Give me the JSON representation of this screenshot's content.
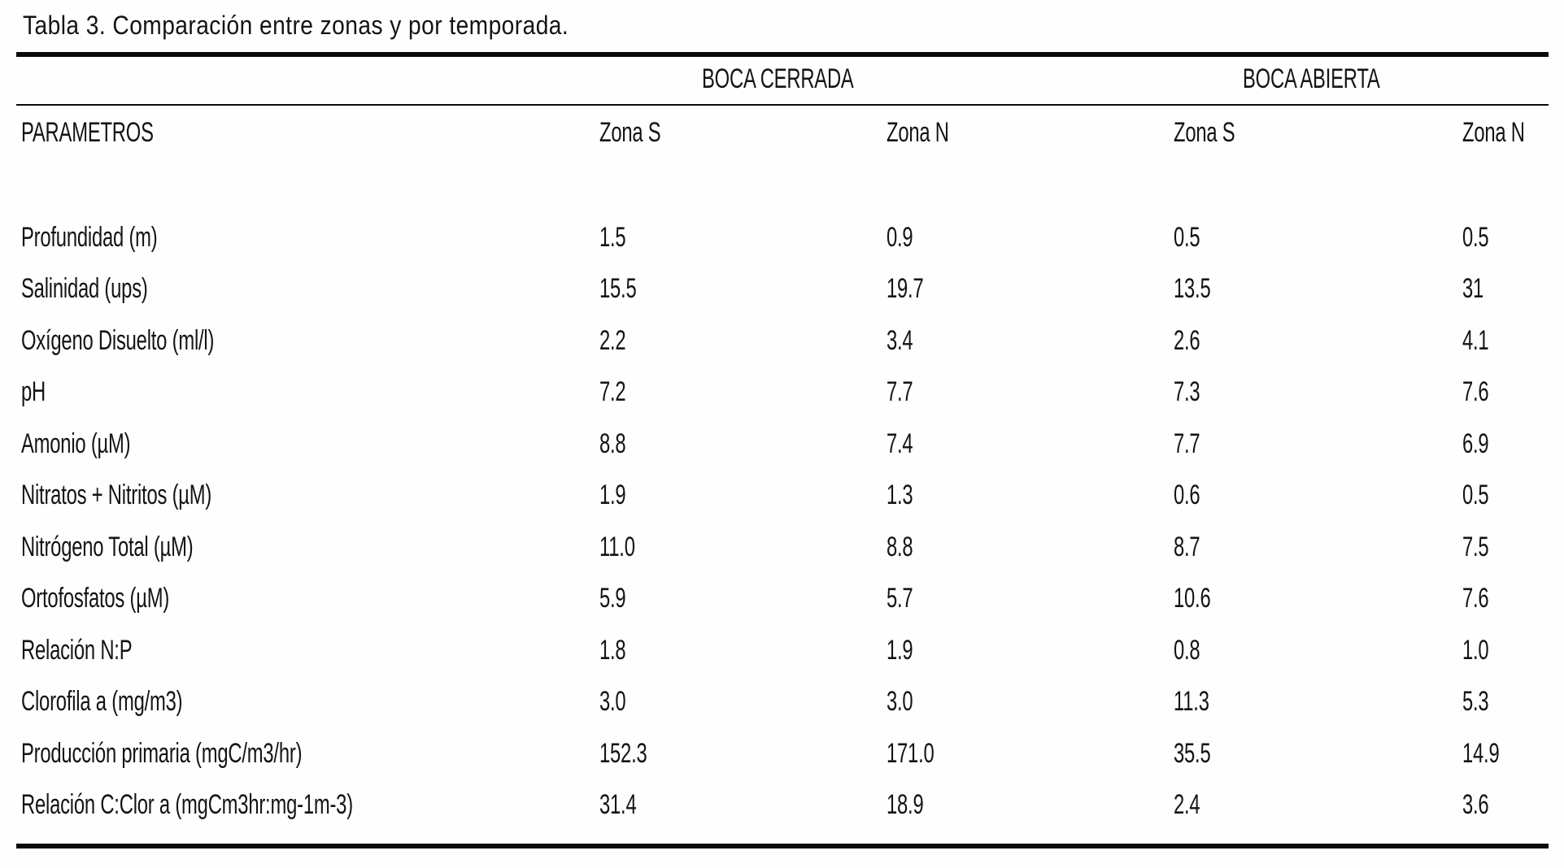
{
  "title": "Tabla 3. Comparación entre zonas y por temporada.",
  "table": {
    "group_headers": [
      {
        "label": "BOCA CERRADA"
      },
      {
        "label": "BOCA ABIERTA"
      }
    ],
    "param_header": "PARAMETROS",
    "sub_headers": [
      "Zona S",
      "Zona N",
      "Zona S",
      "Zona N"
    ],
    "rows": [
      {
        "param": "Profundidad (m)",
        "values": [
          "1.5",
          "0.9",
          "0.5",
          "0.5"
        ]
      },
      {
        "param": "Salinidad (ups)",
        "values": [
          "15.5",
          "19.7",
          "13.5",
          "31"
        ]
      },
      {
        "param": "Oxígeno Disuelto (ml/l)",
        "values": [
          "2.2",
          "3.4",
          "2.6",
          "4.1"
        ]
      },
      {
        "param": "pH",
        "values": [
          "7.2",
          "7.7",
          "7.3",
          "7.6"
        ]
      },
      {
        "param": "Amonio (µM)",
        "values": [
          "8.8",
          "7.4",
          "7.7",
          "6.9"
        ]
      },
      {
        "param": "Nitratos + Nitritos (µM)",
        "values": [
          "1.9",
          "1.3",
          "0.6",
          "0.5"
        ]
      },
      {
        "param": "Nitrógeno Total (µM)",
        "values": [
          "11.0",
          "8.8",
          "8.7",
          "7.5"
        ]
      },
      {
        "param": "Ortofosfatos (µM)",
        "values": [
          "5.9",
          "5.7",
          "10.6",
          "7.6"
        ]
      },
      {
        "param": "Relación N:P",
        "values": [
          "1.8",
          "1.9",
          "0.8",
          "1.0"
        ]
      },
      {
        "param": "Clorofila a (mg/m3)",
        "values": [
          "3.0",
          "3.0",
          "11.3",
          "5.3"
        ]
      },
      {
        "param": "Producción primaria (mgC/m3/hr)",
        "values": [
          "152.3",
          "171.0",
          "35.5",
          "14.9"
        ]
      },
      {
        "param": "Relación C:Clor a (mgCm3hr:mg-1m-3)",
        "values": [
          "31.4",
          "18.9",
          "2.4",
          "3.6"
        ]
      }
    ]
  },
  "colors": {
    "background": "#fefefe",
    "text": "#141414",
    "rule": "#0a0a0a"
  }
}
